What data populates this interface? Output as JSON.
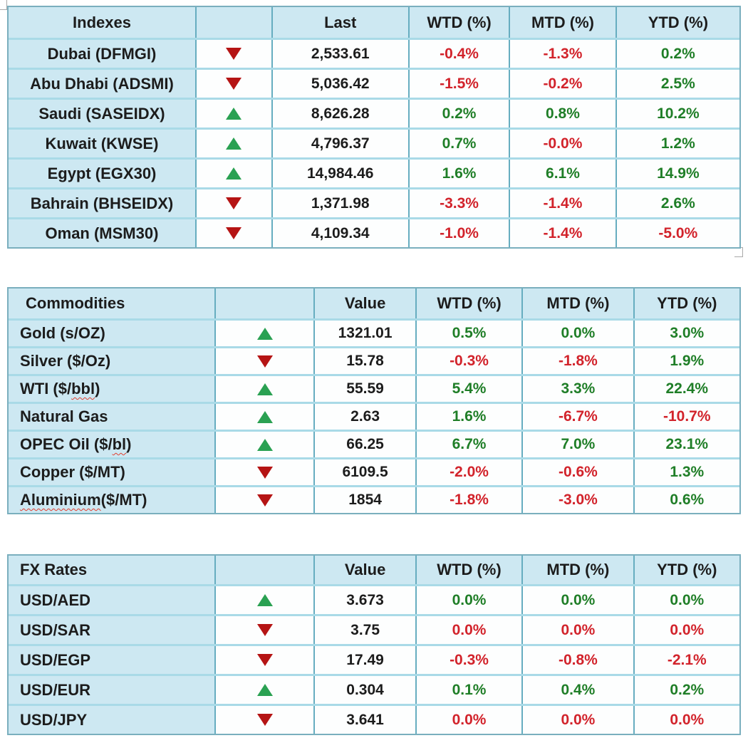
{
  "colors": {
    "positive_text": "#1f7e27",
    "negative_text": "#d2232b",
    "up_arrow": "#2aa152",
    "down_arrow": "#b51414",
    "header_background": "#cde8f2"
  },
  "tables": [
    {
      "title": "Indexes",
      "value_header": "Last",
      "wtd_header": "WTD (%)",
      "mtd_header": "MTD (%)",
      "ytd_header": "YTD (%)",
      "rows": [
        {
          "name": "Dubai (DFMGI)",
          "dir": "down",
          "value": "2,533.61",
          "wtd": "-0.4%",
          "wtd_dir": "neg",
          "mtd": "-1.3%",
          "mtd_dir": "neg",
          "ytd": "0.2%",
          "ytd_dir": "pos"
        },
        {
          "name": "Abu Dhabi (ADSMI)",
          "dir": "down",
          "value": "5,036.42",
          "wtd": "-1.5%",
          "wtd_dir": "neg",
          "mtd": "-0.2%",
          "mtd_dir": "neg",
          "ytd": "2.5%",
          "ytd_dir": "pos"
        },
        {
          "name": "Saudi (SASEIDX)",
          "dir": "up",
          "value": "8,626.28",
          "wtd": "0.2%",
          "wtd_dir": "pos",
          "mtd": "0.8%",
          "mtd_dir": "pos",
          "ytd": "10.2%",
          "ytd_dir": "pos"
        },
        {
          "name": "Kuwait (KWSE)",
          "dir": "up",
          "value": "4,796.37",
          "wtd": "0.7%",
          "wtd_dir": "pos",
          "mtd": "-0.0%",
          "mtd_dir": "neg",
          "ytd": "1.2%",
          "ytd_dir": "pos"
        },
        {
          "name": "Egypt (EGX30)",
          "dir": "up",
          "value": "14,984.46",
          "wtd": "1.6%",
          "wtd_dir": "pos",
          "mtd": "6.1%",
          "mtd_dir": "pos",
          "ytd": "14.9%",
          "ytd_dir": "pos"
        },
        {
          "name": "Bahrain (BHSEIDX)",
          "dir": "down",
          "value": "1,371.98",
          "wtd": "-3.3%",
          "wtd_dir": "neg",
          "mtd": "-1.4%",
          "mtd_dir": "neg",
          "ytd": "2.6%",
          "ytd_dir": "pos"
        },
        {
          "name": "Oman (MSM30)",
          "dir": "down",
          "value": "4,109.34",
          "wtd": "-1.0%",
          "wtd_dir": "neg",
          "mtd": "-1.4%",
          "mtd_dir": "neg",
          "ytd": "-5.0%",
          "ytd_dir": "neg"
        }
      ]
    },
    {
      "title": "Commodities",
      "value_header": "Value",
      "wtd_header": "WTD (%)",
      "mtd_header": "MTD (%)",
      "ytd_header": "YTD (%)",
      "rows": [
        {
          "name_pre": "Gold (s/OZ)",
          "name_sq": "",
          "name_post": "",
          "dir": "up",
          "value": "1321.01",
          "wtd": "0.5%",
          "wtd_dir": "pos",
          "mtd": "0.0%",
          "mtd_dir": "pos",
          "ytd": "3.0%",
          "ytd_dir": "pos"
        },
        {
          "name_pre": "Silver ($/Oz)",
          "name_sq": "",
          "name_post": "",
          "dir": "down",
          "value": "15.78",
          "wtd": "-0.3%",
          "wtd_dir": "neg",
          "mtd": "-1.8%",
          "mtd_dir": "neg",
          "ytd": "1.9%",
          "ytd_dir": "pos"
        },
        {
          "name_pre": "WTI ($/",
          "name_sq": "bbl",
          "name_post": ")",
          "dir": "up",
          "value": "55.59",
          "wtd": "5.4%",
          "wtd_dir": "pos",
          "mtd": "3.3%",
          "mtd_dir": "pos",
          "ytd": "22.4%",
          "ytd_dir": "pos"
        },
        {
          "name_pre": "Natural Gas",
          "name_sq": "",
          "name_post": "",
          "dir": "up",
          "value": "2.63",
          "wtd": "1.6%",
          "wtd_dir": "pos",
          "mtd": "-6.7%",
          "mtd_dir": "neg",
          "ytd": "-10.7%",
          "ytd_dir": "neg"
        },
        {
          "name_pre": "OPEC Oil ($/",
          "name_sq": "bl",
          "name_post": ")",
          "dir": "up",
          "value": "66.25",
          "wtd": "6.7%",
          "wtd_dir": "pos",
          "mtd": "7.0%",
          "mtd_dir": "pos",
          "ytd": "23.1%",
          "ytd_dir": "pos"
        },
        {
          "name_pre": "Copper ($/MT)",
          "name_sq": "",
          "name_post": "",
          "dir": "down",
          "value": "6109.5",
          "wtd": "-2.0%",
          "wtd_dir": "neg",
          "mtd": "-0.6%",
          "mtd_dir": "neg",
          "ytd": "1.3%",
          "ytd_dir": "pos"
        },
        {
          "name_pre": "",
          "name_sq": "Aluminium",
          "name_post": " ($/MT)",
          "dir": "down",
          "value": "1854",
          "wtd": "-1.8%",
          "wtd_dir": "neg",
          "mtd": "-3.0%",
          "mtd_dir": "neg",
          "ytd": "0.6%",
          "ytd_dir": "pos"
        }
      ]
    },
    {
      "title": "FX Rates",
      "value_header": "Value",
      "wtd_header": "WTD (%)",
      "mtd_header": "MTD (%)",
      "ytd_header": "YTD (%)",
      "rows": [
        {
          "name": "USD/AED",
          "dir": "up",
          "value": "3.673",
          "wtd": "0.0%",
          "wtd_dir": "pos",
          "mtd": "0.0%",
          "mtd_dir": "pos",
          "ytd": "0.0%",
          "ytd_dir": "pos"
        },
        {
          "name": "USD/SAR",
          "dir": "down",
          "value": "3.75",
          "wtd": "0.0%",
          "wtd_dir": "neg",
          "mtd": "0.0%",
          "mtd_dir": "neg",
          "ytd": "0.0%",
          "ytd_dir": "neg"
        },
        {
          "name": "USD/EGP",
          "dir": "down",
          "value": "17.49",
          "wtd": "-0.3%",
          "wtd_dir": "neg",
          "mtd": "-0.8%",
          "mtd_dir": "neg",
          "ytd": "-2.1%",
          "ytd_dir": "neg"
        },
        {
          "name": "USD/EUR",
          "dir": "up",
          "value": "0.304",
          "wtd": "0.1%",
          "wtd_dir": "pos",
          "mtd": "0.4%",
          "mtd_dir": "pos",
          "ytd": "0.2%",
          "ytd_dir": "pos"
        },
        {
          "name": "USD/JPY",
          "dir": "down",
          "value": "3.641",
          "wtd": "0.0%",
          "wtd_dir": "neg",
          "mtd": "0.0%",
          "mtd_dir": "neg",
          "ytd": "0.0%",
          "ytd_dir": "neg"
        }
      ]
    }
  ]
}
